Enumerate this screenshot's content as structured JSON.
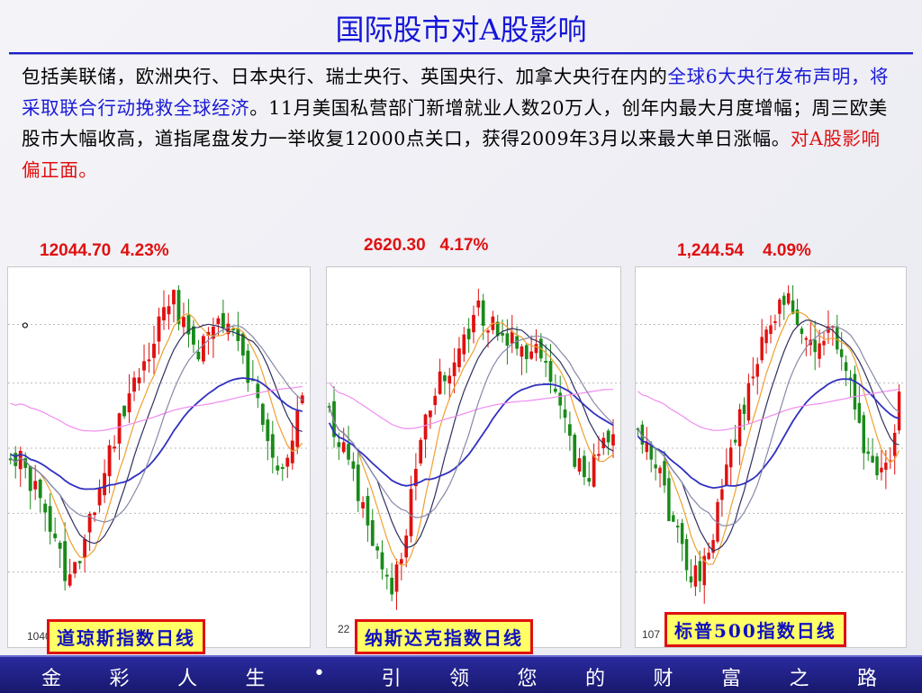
{
  "slide": {
    "title": "国际股市对A股影响",
    "paragraph": {
      "part1": "包括美联储，欧洲央行、日本央行、瑞士央行、英国央行、加拿大央行在内的",
      "part2_highlight": "全球6大央行发布声明，将采取联合行动挽救全球经济",
      "part3": "。11月美国私营部门新增就业人数20万人，创年内最大月度增幅；周三欧美股市大幅收高，道指尾盘发力一举收复12000点关口，获得2009年3月以来最大单日涨幅。",
      "part4_red": "对A股影响偏正面。"
    },
    "stray_mark": "。"
  },
  "charts": [
    {
      "stat": "12044.70  4.23%",
      "axis_tick": "1040",
      "label": "道琼斯指数日线"
    },
    {
      "stat": "2620.30   4.17%",
      "axis_tick": "22",
      "label": "纳斯达克指数日线"
    },
    {
      "stat": "1,244.54    4.09%",
      "axis_tick": "107",
      "label": "标普500指数日线"
    }
  ],
  "footer": {
    "chars": [
      "金",
      "彩",
      "人",
      "生",
      "•",
      "引",
      "领",
      "您",
      "的",
      "财",
      "富",
      "之",
      "路"
    ]
  },
  "colors": {
    "title": "#1515d8",
    "highlight_blue": "#1a1ad6",
    "highlight_red": "#e01010",
    "candle_up": "#e01010",
    "candle_down": "#1a8a1a",
    "footer_bg": "#1f1f86"
  },
  "chart_data": [
    {
      "type": "candlestick",
      "name": "道琼斯指数日线",
      "ma_lines": [
        "orange",
        "dark-blue",
        "blue",
        "pink",
        "gray"
      ],
      "grid": true
    },
    {
      "type": "candlestick",
      "name": "纳斯达克指数日线",
      "ma_lines": [
        "orange",
        "dark-blue",
        "blue",
        "pink",
        "gray"
      ],
      "grid": true
    },
    {
      "type": "candlestick",
      "name": "标普500指数日线",
      "ma_lines": [
        "orange",
        "dark-blue",
        "blue",
        "pink",
        "gray"
      ],
      "grid": true
    }
  ]
}
